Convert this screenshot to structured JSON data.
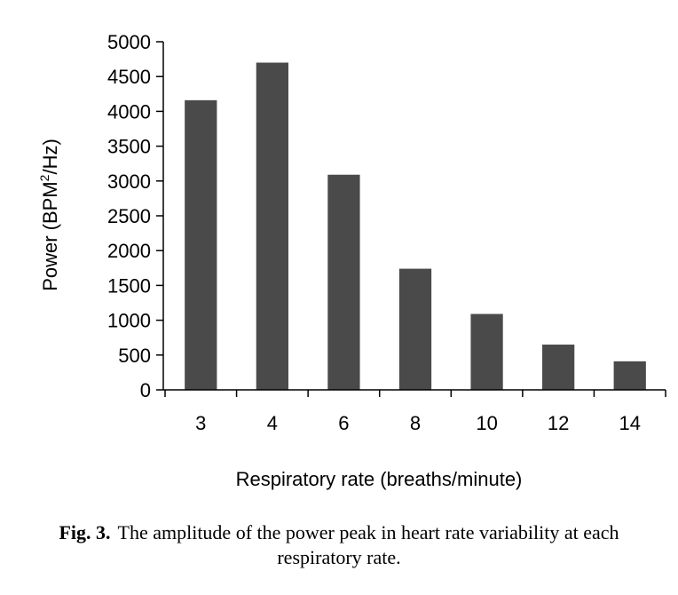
{
  "chart_data": {
    "type": "bar",
    "categories": [
      "3",
      "4",
      "6",
      "8",
      "10",
      "12",
      "14"
    ],
    "values": [
      4160,
      4700,
      3090,
      1740,
      1090,
      650,
      410
    ],
    "xlabel": "Respiratory rate (breaths/minute)",
    "ylabel_main": "Power (BPM",
    "ylabel_sup": "2",
    "ylabel_tail": "/Hz)",
    "ylim": [
      0,
      5000
    ],
    "yticks": [
      0,
      500,
      1000,
      1500,
      2000,
      2500,
      3000,
      3500,
      4000,
      4500,
      5000
    ],
    "grid": false,
    "legend": "none",
    "bar_color": "#4a4a4a"
  },
  "caption": {
    "label": "Fig. 3.",
    "text": "The amplitude of the power peak in heart rate variability at each respiratory rate."
  }
}
